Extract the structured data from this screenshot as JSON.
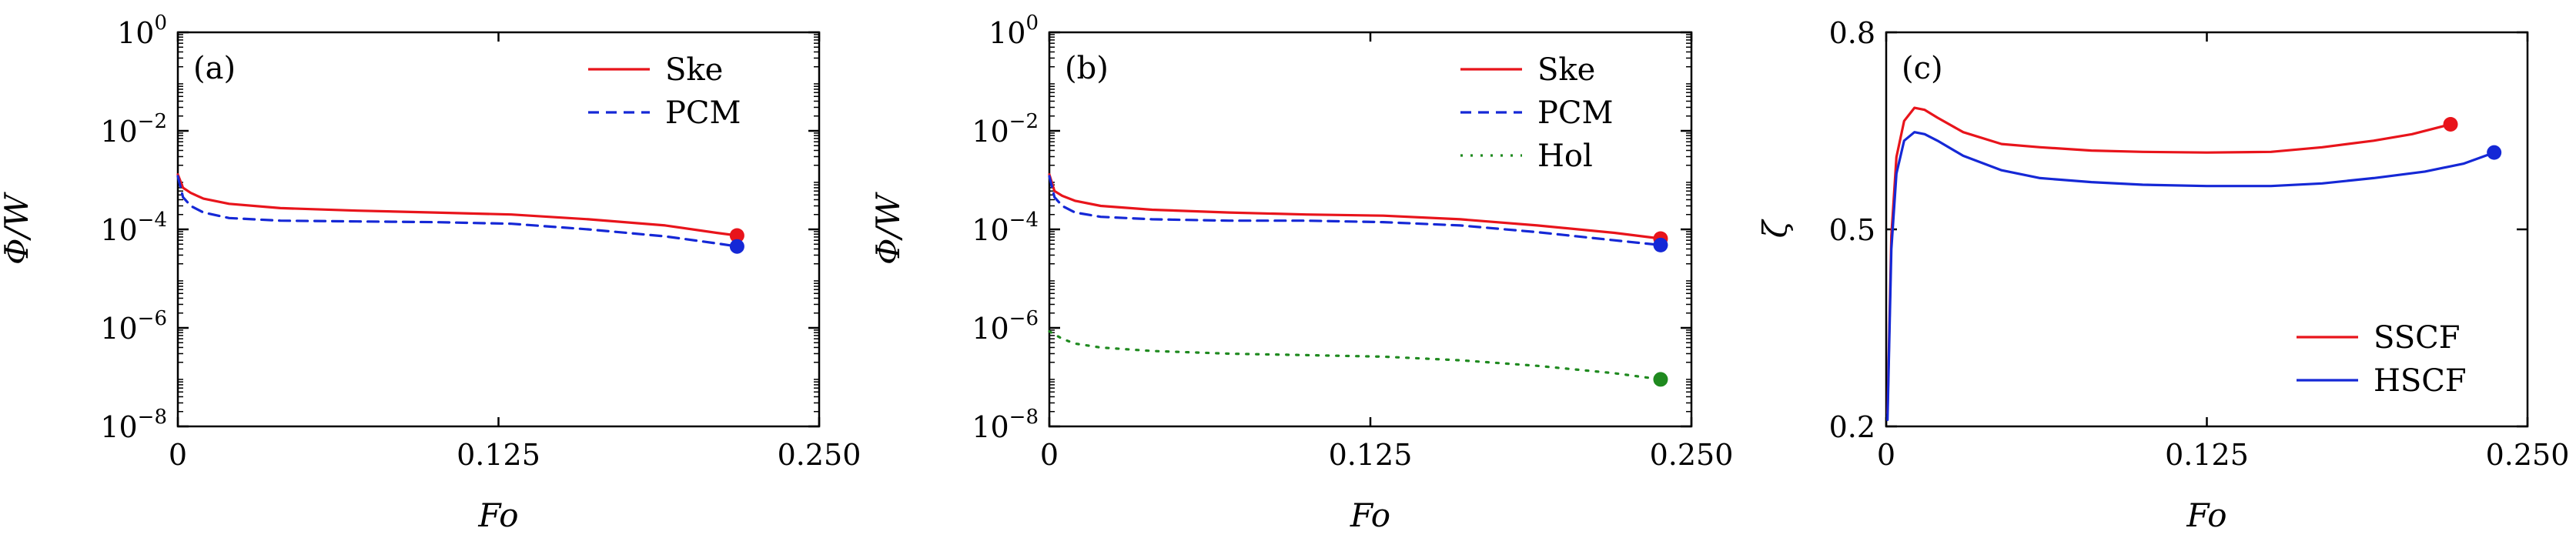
{
  "chart_data": [
    {
      "type": "line",
      "panel_label": "(a)",
      "xlabel": "Fo",
      "ylabel": "Φ/W",
      "xlim": [
        0,
        0.25
      ],
      "ylim": [
        1e-08,
        1
      ],
      "yscale": "log",
      "x_ticks": [
        "0",
        "0.125",
        "0.250"
      ],
      "x_tick_values": [
        0,
        0.125,
        0.25
      ],
      "y_ticks": [
        {
          "base": "10",
          "exp": "0",
          "value": 1
        },
        {
          "base": "10",
          "exp": "−2",
          "value": 0.01
        },
        {
          "base": "10",
          "exp": "−4",
          "value": 0.0001
        },
        {
          "base": "10",
          "exp": "−6",
          "value": 1e-06
        },
        {
          "base": "10",
          "exp": "−8",
          "value": 1e-08
        }
      ],
      "legend_position": "top-right",
      "series": [
        {
          "name": "Ske",
          "color": "#e8141b",
          "style": "solid",
          "x": [
            0,
            0.002,
            0.005,
            0.01,
            0.02,
            0.04,
            0.07,
            0.1,
            0.13,
            0.16,
            0.19,
            0.21,
            0.218
          ],
          "y": [
            0.0013,
            0.0007,
            0.00055,
            0.00042,
            0.00033,
            0.00027,
            0.00024,
            0.00022,
            0.0002,
            0.00016,
            0.00012,
            8.5e-05,
            7.5e-05
          ],
          "end_marker": true
        },
        {
          "name": "PCM",
          "color": "#1528d6",
          "style": "dashed",
          "x": [
            0,
            0.002,
            0.005,
            0.01,
            0.02,
            0.04,
            0.07,
            0.1,
            0.13,
            0.16,
            0.19,
            0.21,
            0.218
          ],
          "y": [
            0.0012,
            0.00045,
            0.0003,
            0.00022,
            0.00017,
            0.00015,
            0.000145,
            0.00014,
            0.00013,
            0.0001,
            7.2e-05,
            5.2e-05,
            4.5e-05
          ],
          "end_marker": true
        }
      ]
    },
    {
      "type": "line",
      "panel_label": "(b)",
      "xlabel": "Fo",
      "ylabel": "Φ/W",
      "xlim": [
        0,
        0.25
      ],
      "ylim": [
        1e-08,
        1
      ],
      "yscale": "log",
      "x_ticks": [
        "0",
        "0.125",
        "0.250"
      ],
      "x_tick_values": [
        0,
        0.125,
        0.25
      ],
      "y_ticks": [
        {
          "base": "10",
          "exp": "0",
          "value": 1
        },
        {
          "base": "10",
          "exp": "−2",
          "value": 0.01
        },
        {
          "base": "10",
          "exp": "−4",
          "value": 0.0001
        },
        {
          "base": "10",
          "exp": "−6",
          "value": 1e-06
        },
        {
          "base": "10",
          "exp": "−8",
          "value": 1e-08
        }
      ],
      "legend_position": "top-right",
      "series": [
        {
          "name": "Ske",
          "color": "#e8141b",
          "style": "solid",
          "x": [
            0,
            0.002,
            0.005,
            0.01,
            0.02,
            0.04,
            0.07,
            0.1,
            0.13,
            0.16,
            0.19,
            0.22,
            0.238
          ],
          "y": [
            0.0013,
            0.0006,
            0.00048,
            0.00038,
            0.0003,
            0.00025,
            0.00022,
            0.0002,
            0.00019,
            0.00016,
            0.00012,
            8.5e-05,
            6.5e-05
          ],
          "end_marker": true
        },
        {
          "name": "PCM",
          "color": "#1528d6",
          "style": "dashed",
          "x": [
            0,
            0.002,
            0.005,
            0.01,
            0.02,
            0.04,
            0.07,
            0.1,
            0.13,
            0.16,
            0.19,
            0.22,
            0.238
          ],
          "y": [
            0.0012,
            0.00045,
            0.0003,
            0.00022,
            0.00018,
            0.00016,
            0.00015,
            0.00015,
            0.00014,
            0.00012,
            8.8e-05,
            6e-05,
            4.8e-05
          ],
          "end_marker": true
        },
        {
          "name": "Hol",
          "color": "#1f8a1f",
          "style": "dotted",
          "x": [
            0,
            0.005,
            0.01,
            0.02,
            0.04,
            0.07,
            0.1,
            0.13,
            0.16,
            0.19,
            0.22,
            0.238
          ],
          "y": [
            8.5e-07,
            6e-07,
            4.8e-07,
            4e-07,
            3.4e-07,
            3e-07,
            2.8e-07,
            2.6e-07,
            2.2e-07,
            1.7e-07,
            1.2e-07,
            9e-08
          ],
          "end_marker": true
        }
      ]
    },
    {
      "type": "line",
      "panel_label": "(c)",
      "xlabel": "Fo",
      "ylabel": "ζ",
      "xlim": [
        0,
        0.25
      ],
      "ylim": [
        0.2,
        0.8
      ],
      "yscale": "linear",
      "x_ticks": [
        "0",
        "0.125",
        "0.250"
      ],
      "x_tick_values": [
        0,
        0.125,
        0.25
      ],
      "y_ticks": [
        {
          "base": "0.2",
          "exp": "",
          "value": 0.2
        },
        {
          "base": "0.5",
          "exp": "",
          "value": 0.5
        },
        {
          "base": "0.8",
          "exp": "",
          "value": 0.8
        }
      ],
      "legend_position": "bottom-right",
      "series": [
        {
          "name": "SSCF",
          "color": "#e8141b",
          "style": "solid",
          "x": [
            0.0005,
            0.002,
            0.004,
            0.007,
            0.011,
            0.015,
            0.02,
            0.03,
            0.045,
            0.06,
            0.08,
            0.1,
            0.125,
            0.15,
            0.17,
            0.19,
            0.205,
            0.22
          ],
          "y": [
            0.22,
            0.49,
            0.61,
            0.665,
            0.685,
            0.682,
            0.67,
            0.648,
            0.63,
            0.625,
            0.62,
            0.618,
            0.617,
            0.618,
            0.625,
            0.635,
            0.645,
            0.66
          ],
          "end_marker": true
        },
        {
          "name": "HSCF",
          "color": "#1528d6",
          "style": "solid",
          "x": [
            0.0005,
            0.002,
            0.004,
            0.007,
            0.011,
            0.015,
            0.02,
            0.03,
            0.045,
            0.06,
            0.08,
            0.1,
            0.125,
            0.15,
            0.17,
            0.19,
            0.21,
            0.225,
            0.237
          ],
          "y": [
            0.21,
            0.47,
            0.585,
            0.635,
            0.648,
            0.645,
            0.635,
            0.612,
            0.59,
            0.578,
            0.572,
            0.568,
            0.566,
            0.566,
            0.57,
            0.578,
            0.588,
            0.6,
            0.617
          ],
          "end_marker": true
        }
      ]
    }
  ]
}
